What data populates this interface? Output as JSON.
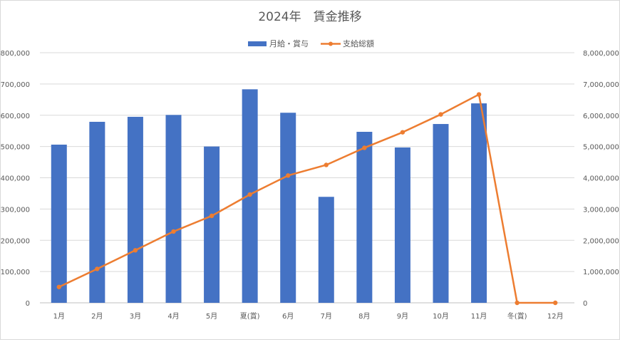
{
  "chart_data": {
    "type": "bar+line",
    "title": "2024年　賃金推移",
    "categories": [
      "1月",
      "2月",
      "3月",
      "4月",
      "5月",
      "夏(賞)",
      "6月",
      "7月",
      "8月",
      "9月",
      "10月",
      "11月",
      "冬(賞)",
      "12月"
    ],
    "series": [
      {
        "name": "月給・賞与",
        "type": "bar",
        "axis": "left",
        "color": "#4472C4",
        "values": [
          506000,
          579000,
          595000,
          601000,
          500000,
          683000,
          608000,
          339000,
          547000,
          497000,
          572000,
          638000,
          0,
          0
        ]
      },
      {
        "name": "支給総額",
        "type": "line",
        "axis": "right",
        "color": "#ED7D31",
        "values": [
          506000,
          1085000,
          1680000,
          2281000,
          2781000,
          3464000,
          4072000,
          4411000,
          4958000,
          5455000,
          6027000,
          6665000,
          0,
          0
        ]
      }
    ],
    "y_left": {
      "min": 0,
      "max": 800000,
      "ticks": [
        "0",
        "100,000",
        "200,000",
        "300,000",
        "400,000",
        "500,000",
        "600,000",
        "700,000",
        "800,000"
      ]
    },
    "y_right": {
      "min": 0,
      "max": 8000000,
      "ticks": [
        "0",
        "1,000,000",
        "2,000,000",
        "3,000,000",
        "4,000,000",
        "5,000,000",
        "6,000,000",
        "7,000,000",
        "8,000,000"
      ]
    },
    "grid": true,
    "legend": "top"
  }
}
